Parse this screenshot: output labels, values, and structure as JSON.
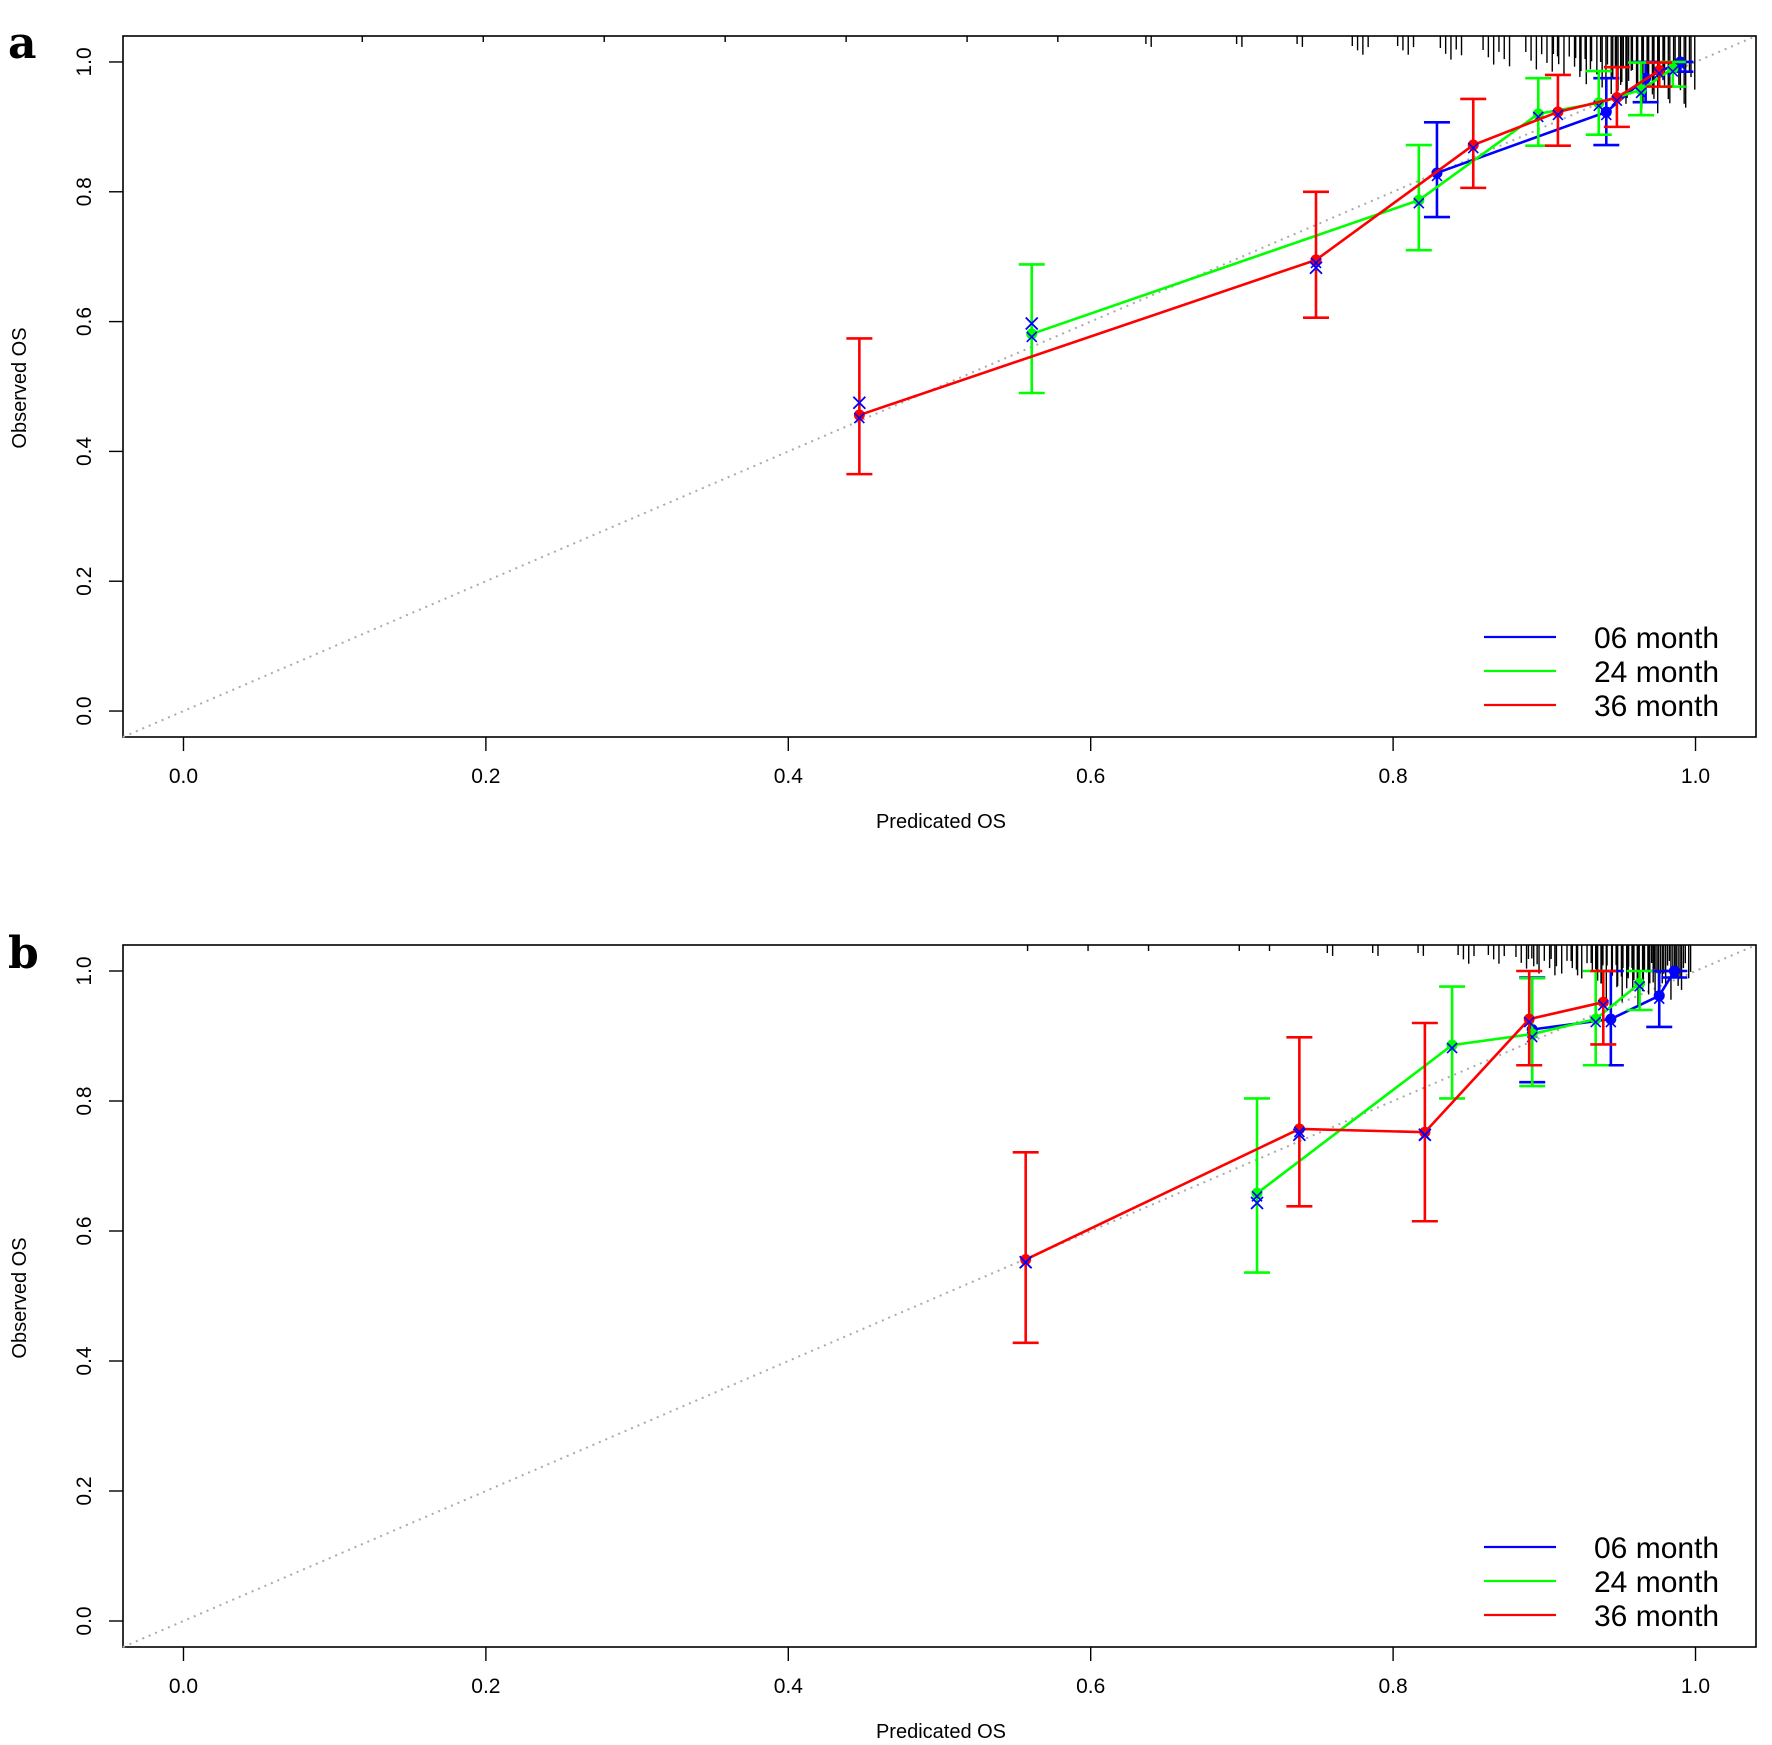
{
  "figure": {
    "panels": [
      "a",
      "b"
    ]
  },
  "chart_data": [
    {
      "panel": "a",
      "type": "line",
      "subtype": "calibration-curve-with-error-bars",
      "title": "",
      "xlabel": "Predicated  OS",
      "ylabel": "Observed OS",
      "xlim": [
        -0.04,
        1.04
      ],
      "ylim": [
        -0.04,
        1.04
      ],
      "xticks": [
        0.0,
        0.2,
        0.4,
        0.6,
        0.8,
        1.0
      ],
      "yticks": [
        0.0,
        0.2,
        0.4,
        0.6,
        0.8,
        1.0
      ],
      "xtick_labels": [
        "0.0",
        "0.2",
        "0.4",
        "0.6",
        "0.8",
        "1.0"
      ],
      "ytick_labels": [
        "0.0",
        "0.2",
        "0.4",
        "0.6",
        "0.8",
        "1.0"
      ],
      "grid": false,
      "reference_line": {
        "type": "diagonal",
        "color": "#aaaaaa",
        "style": "dotted"
      },
      "legend": {
        "position": "bottom-right",
        "entries": [
          "06 month",
          "24 month",
          "36 month"
        ]
      },
      "series": [
        {
          "name": "06 month",
          "color": "#0000ff",
          "points": [
            {
              "x": 0.829,
              "y": 0.829,
              "lo": 0.761,
              "hi": 0.907
            },
            {
              "x": 0.941,
              "y": 0.923,
              "lo": 0.872,
              "hi": 0.975
            },
            {
              "x": 0.967,
              "y": 0.975,
              "lo": 0.938,
              "hi": 1.0
            },
            {
              "x": 0.99,
              "y": 1.0,
              "lo": 0.985,
              "hi": 1.0
            }
          ]
        },
        {
          "name": "24 month",
          "color": "#00ff00",
          "points": [
            {
              "x": 0.561,
              "y": 0.581,
              "lo": 0.49,
              "hi": 0.688
            },
            {
              "x": 0.817,
              "y": 0.787,
              "lo": 0.71,
              "hi": 0.872
            },
            {
              "x": 0.896,
              "y": 0.92,
              "lo": 0.871,
              "hi": 0.975
            },
            {
              "x": 0.936,
              "y": 0.937,
              "lo": 0.888,
              "hi": 0.986
            },
            {
              "x": 0.964,
              "y": 0.957,
              "lo": 0.918,
              "hi": 0.999
            },
            {
              "x": 0.985,
              "y": 0.99,
              "lo": 0.962,
              "hi": 1.0
            }
          ]
        },
        {
          "name": "36 month",
          "color": "#ff0000",
          "points": [
            {
              "x": 0.447,
              "y": 0.456,
              "lo": 0.365,
              "hi": 0.574
            },
            {
              "x": 0.749,
              "y": 0.695,
              "lo": 0.606,
              "hi": 0.8
            },
            {
              "x": 0.853,
              "y": 0.872,
              "lo": 0.806,
              "hi": 0.943
            },
            {
              "x": 0.909,
              "y": 0.923,
              "lo": 0.871,
              "hi": 0.98
            },
            {
              "x": 0.948,
              "y": 0.945,
              "lo": 0.9,
              "hi": 0.992
            },
            {
              "x": 0.976,
              "y": 0.987,
              "lo": 0.962,
              "hi": 0.999
            }
          ]
        }
      ],
      "observed_markers_06m": [
        {
          "x": 0.447,
          "y": 0.475
        },
        {
          "x": 0.561,
          "y": 0.597
        },
        {
          "x": 0.749,
          "y": 0.683
        }
      ],
      "rug": {
        "description": "distribution of predicted values along top axis",
        "bins": [
          {
            "x": 0.12,
            "n": 1
          },
          {
            "x": 0.2,
            "n": 1
          },
          {
            "x": 0.28,
            "n": 1
          },
          {
            "x": 0.36,
            "n": 1
          },
          {
            "x": 0.44,
            "n": 1
          },
          {
            "x": 0.52,
            "n": 1
          },
          {
            "x": 0.58,
            "n": 1
          },
          {
            "x": 0.64,
            "n": 2
          },
          {
            "x": 0.7,
            "n": 2
          },
          {
            "x": 0.74,
            "n": 2
          },
          {
            "x": 0.78,
            "n": 3
          },
          {
            "x": 0.81,
            "n": 3
          },
          {
            "x": 0.84,
            "n": 4
          },
          {
            "x": 0.87,
            "n": 5
          },
          {
            "x": 0.9,
            "n": 6
          },
          {
            "x": 0.92,
            "n": 7
          },
          {
            "x": 0.94,
            "n": 9
          },
          {
            "x": 0.96,
            "n": 11
          },
          {
            "x": 0.975,
            "n": 13
          },
          {
            "x": 0.99,
            "n": 12
          }
        ]
      }
    },
    {
      "panel": "b",
      "type": "line",
      "subtype": "calibration-curve-with-error-bars",
      "title": "",
      "xlabel": "Predicated  OS",
      "ylabel": "Observed OS",
      "xlim": [
        -0.04,
        1.04
      ],
      "ylim": [
        -0.04,
        1.04
      ],
      "xticks": [
        0.0,
        0.2,
        0.4,
        0.6,
        0.8,
        1.0
      ],
      "yticks": [
        0.0,
        0.2,
        0.4,
        0.6,
        0.8,
        1.0
      ],
      "xtick_labels": [
        "0.0",
        "0.2",
        "0.4",
        "0.6",
        "0.8",
        "1.0"
      ],
      "ytick_labels": [
        "0.0",
        "0.2",
        "0.4",
        "0.6",
        "0.8",
        "1.0"
      ],
      "grid": false,
      "reference_line": {
        "type": "diagonal",
        "color": "#aaaaaa",
        "style": "dotted"
      },
      "legend": {
        "position": "bottom-right",
        "entries": [
          "06 month",
          "24 month",
          "36 month"
        ]
      },
      "series": [
        {
          "name": "06 month",
          "color": "#0000ff",
          "points": [
            {
              "x": 0.892,
              "y": 0.91,
              "lo": 0.829,
              "hi": 0.99
            },
            {
              "x": 0.944,
              "y": 0.926,
              "lo": 0.855,
              "hi": 1.0
            },
            {
              "x": 0.976,
              "y": 0.962,
              "lo": 0.914,
              "hi": 1.0
            },
            {
              "x": 0.986,
              "y": 1.0,
              "lo": 0.99,
              "hi": 1.0
            }
          ]
        },
        {
          "name": "24 month",
          "color": "#00ff00",
          "points": [
            {
              "x": 0.71,
              "y": 0.658,
              "lo": 0.536,
              "hi": 0.804
            },
            {
              "x": 0.839,
              "y": 0.886,
              "lo": 0.804,
              "hi": 0.976
            },
            {
              "x": 0.892,
              "y": 0.903,
              "lo": 0.823,
              "hi": 0.989
            },
            {
              "x": 0.934,
              "y": 0.926,
              "lo": 0.855,
              "hi": 1.0
            },
            {
              "x": 0.963,
              "y": 0.981,
              "lo": 0.94,
              "hi": 1.0
            }
          ]
        },
        {
          "name": "36 month",
          "color": "#ff0000",
          "points": [
            {
              "x": 0.557,
              "y": 0.556,
              "lo": 0.428,
              "hi": 0.721
            },
            {
              "x": 0.738,
              "y": 0.757,
              "lo": 0.638,
              "hi": 0.898
            },
            {
              "x": 0.821,
              "y": 0.752,
              "lo": 0.615,
              "hi": 0.92
            },
            {
              "x": 0.89,
              "y": 0.926,
              "lo": 0.855,
              "hi": 1.0
            },
            {
              "x": 0.939,
              "y": 0.952,
              "lo": 0.887,
              "hi": 1.0
            }
          ]
        }
      ],
      "observed_markers_06m": [
        {
          "x": 0.557,
          "y": 0.552
        },
        {
          "x": 0.71,
          "y": 0.643
        },
        {
          "x": 0.738,
          "y": 0.748
        },
        {
          "x": 0.821,
          "y": 0.748
        }
      ],
      "rug": {
        "description": "distribution of predicted values along top axis",
        "bins": [
          {
            "x": 0.56,
            "n": 1
          },
          {
            "x": 0.6,
            "n": 1
          },
          {
            "x": 0.64,
            "n": 1
          },
          {
            "x": 0.7,
            "n": 1
          },
          {
            "x": 0.72,
            "n": 1
          },
          {
            "x": 0.76,
            "n": 2
          },
          {
            "x": 0.79,
            "n": 2
          },
          {
            "x": 0.82,
            "n": 2
          },
          {
            "x": 0.85,
            "n": 3
          },
          {
            "x": 0.87,
            "n": 3
          },
          {
            "x": 0.89,
            "n": 4
          },
          {
            "x": 0.9,
            "n": 5
          },
          {
            "x": 0.915,
            "n": 5
          },
          {
            "x": 0.93,
            "n": 6
          },
          {
            "x": 0.945,
            "n": 7
          },
          {
            "x": 0.955,
            "n": 10
          },
          {
            "x": 0.965,
            "n": 8
          },
          {
            "x": 0.975,
            "n": 9
          },
          {
            "x": 0.985,
            "n": 7
          },
          {
            "x": 0.995,
            "n": 6
          }
        ]
      }
    }
  ]
}
